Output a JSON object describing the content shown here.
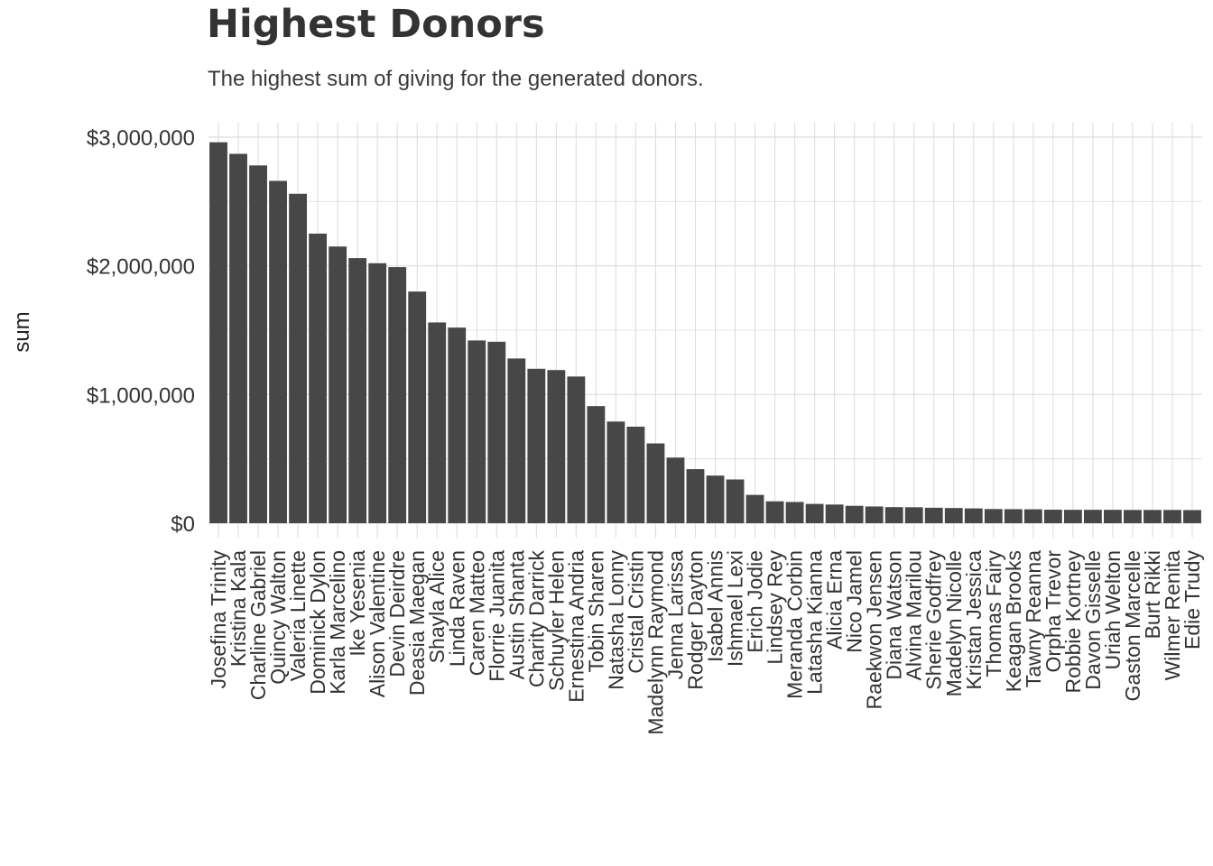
{
  "chart_data": {
    "type": "bar",
    "title": "Highest Donors",
    "subtitle": "The highest sum of giving for the generated donors.",
    "xlabel": "",
    "ylabel": "sum",
    "ylim": [
      0,
      3000000
    ],
    "y_ticks": [
      0,
      1000000,
      2000000,
      3000000
    ],
    "y_tick_labels": [
      "$0",
      "$1,000,000",
      "$2,000,000",
      "$3,000,000"
    ],
    "grid": true,
    "bar_color": "#474747",
    "grid_color": "#dedede",
    "categories": [
      "Josefina Trinity",
      "Kristina Kala",
      "Charline Gabriel",
      "Quincy Walton",
      "Valeria Linette",
      "Dominick Dylon",
      "Karla Marcelino",
      "Ike Yesenia",
      "Alison Valentine",
      "Devin Deirdre",
      "Deasia Maegan",
      "Shayla Alice",
      "Linda Raven",
      "Caren Matteo",
      "Florrie Juanita",
      "Austin Shanta",
      "Charity Darrick",
      "Schuyler Helen",
      "Ernestina Andria",
      "Tobin Sharen",
      "Natasha Lonny",
      "Cristal Cristin",
      "Madelynn Raymond",
      "Jenna Larissa",
      "Rodger Dayton",
      "Isabel Annis",
      "Ishmael Lexi",
      "Erich Jodie",
      "Lindsey Rey",
      "Meranda Corbin",
      "Latasha Kianna",
      "Alicia Erna",
      "Nico Jamel",
      "Raekwon Jensen",
      "Diana Watson",
      "Alvina Marilou",
      "Sherie Godfrey",
      "Madelyn Nicolle",
      "Kristan Jessica",
      "Thomas Fairy",
      "Keagan Brooks",
      "Tawny Reanna",
      "Orpha Trevor",
      "Robbie Kortney",
      "Davon Gisselle",
      "Uriah Welton",
      "Gaston Marcelle",
      "Burt Rikki",
      "Wilmer Renita",
      "Edie Trudy"
    ],
    "values": [
      2960000,
      2870000,
      2780000,
      2660000,
      2560000,
      2250000,
      2150000,
      2060000,
      2020000,
      1990000,
      1800000,
      1560000,
      1520000,
      1420000,
      1410000,
      1280000,
      1200000,
      1190000,
      1140000,
      910000,
      790000,
      750000,
      620000,
      510000,
      420000,
      370000,
      340000,
      220000,
      170000,
      165000,
      150000,
      145000,
      135000,
      130000,
      125000,
      124000,
      120000,
      118000,
      115000,
      110000,
      109000,
      108000,
      105000,
      104000,
      104000,
      104000,
      103000,
      103000,
      103000,
      102000
    ]
  }
}
